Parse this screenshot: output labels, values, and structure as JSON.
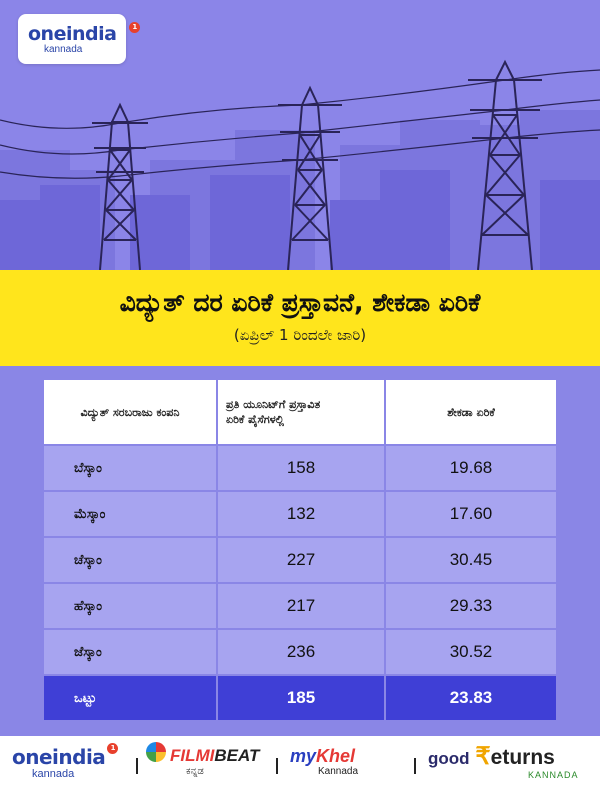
{
  "brand": {
    "logo_word": "oneindia",
    "logo_sub": "kannada",
    "badge": "1"
  },
  "banner": {
    "title": "ವಿದ್ಯುತ್ ದರ ಏರಿಕೆ ಪ್ರಸ್ತಾವನೆ, ಶೇಕಡಾ ಏರಿಕೆ",
    "subtitle": "(ಏಪ್ರಿಲ್ 1 ರಿಂದಲೇ ಜಾರಿ)"
  },
  "table": {
    "headers": {
      "company": "ವಿದ್ಯುತ್ ಸರಬರಾಜು ಕಂಪನಿ",
      "proposed_line1": "ಪ್ರತಿ ಯೂನಿಟ್‌ಗೆ ಪ್ರಸ್ತಾವಿತ",
      "proposed_line2": "ಏರಿಕೆ ಪೈಸೆಗಳಲ್ಲಿ",
      "percent": "ಶೇಕಡಾ ಏರಿಕೆ"
    },
    "rows": [
      {
        "company": "ಬೆಸ್ಕಾಂ",
        "paise": "158",
        "percent": "19.68"
      },
      {
        "company": "ಮೆಸ್ಕಾಂ",
        "paise": "132",
        "percent": "17.60"
      },
      {
        "company": "ಚೆಸ್ಕಾಂ",
        "paise": "227",
        "percent": "30.45"
      },
      {
        "company": "ಹೆಸ್ಕಾಂ",
        "paise": "217",
        "percent": "29.33"
      },
      {
        "company": "ಜೆಸ್ಕಾಂ",
        "paise": "236",
        "percent": "30.52"
      }
    ],
    "total": {
      "company": "ಒಟ್ಟು",
      "paise": "185",
      "percent": "23.83"
    }
  },
  "footer": {
    "oneindia": {
      "word": "oneindia",
      "sub": "kannada",
      "badge": "1"
    },
    "filmibeat": {
      "filmi": "FILMI",
      "beat": "BEAT",
      "sub": "ಕನ್ನಡ"
    },
    "mykhel": {
      "my": "my",
      "khel": "Khel",
      "sub": "Kannada"
    },
    "goodreturns": {
      "good": "good",
      "rupee": "₹",
      "returns": "eturns",
      "sub": "KANNADA"
    },
    "separator": "|"
  },
  "colors": {
    "background": "#8a86e6",
    "banner": "#ffe51c",
    "row": "#a7a4f0",
    "total_row": "#3f3fd6",
    "brand_blue": "#2a45a8",
    "badge_red": "#e8402c"
  }
}
